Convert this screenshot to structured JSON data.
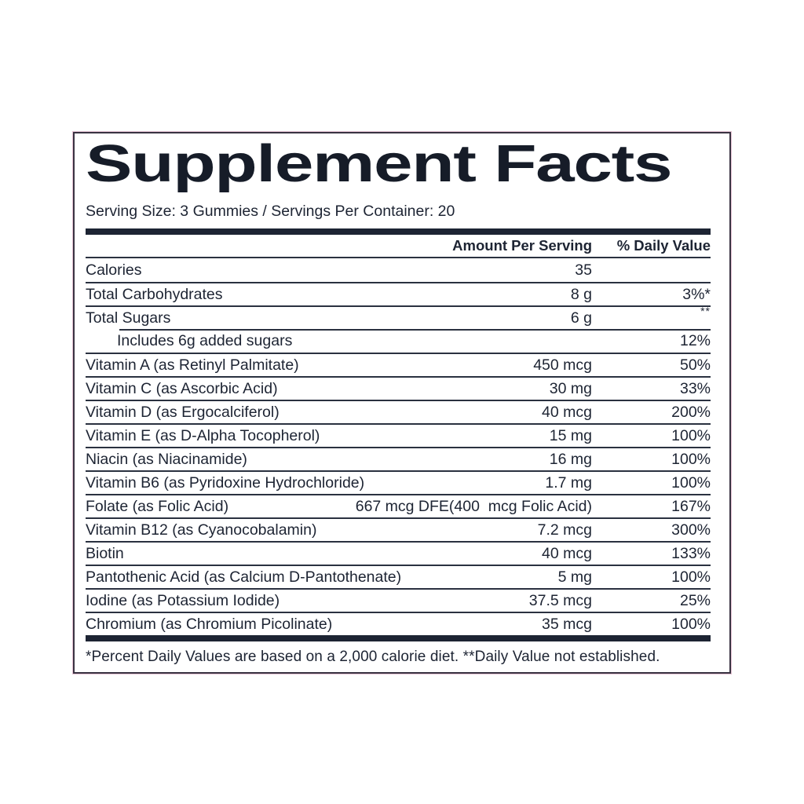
{
  "label": {
    "title": "Supplement Facts",
    "serving_info": "Serving Size: 3 Gummies / Servings Per Container: 20",
    "columns": {
      "amount": "Amount Per Serving",
      "daily_value": "% Daily Value"
    },
    "rows": [
      {
        "name": "Calories",
        "amount": "35",
        "dv": ""
      },
      {
        "name": "Total Carbohydrates",
        "amount": "8 g",
        "dv": "3%*"
      },
      {
        "name": "Total Sugars",
        "amount": "6 g",
        "dv": "**",
        "dv_sup": true
      },
      {
        "name": "Includes 6g added sugars",
        "amount": "",
        "dv": "12%",
        "indent": true,
        "indent_line": true
      },
      {
        "name": "Vitamin A (as Retinyl Palmitate)",
        "amount": "450 mcg",
        "dv": "50%"
      },
      {
        "name": "Vitamin C (as Ascorbic Acid)",
        "amount": "30 mg",
        "dv": "33%"
      },
      {
        "name": "Vitamin D (as Ergocalciferol)",
        "amount": "40 mcg",
        "dv": "200%"
      },
      {
        "name": "Vitamin E (as D-Alpha Tocopherol)",
        "amount": "15 mg",
        "dv": "100%"
      },
      {
        "name": "Niacin (as Niacinamide)",
        "amount": "16 mg",
        "dv": "100%"
      },
      {
        "name": "Vitamin B6 (as Pyridoxine Hydrochloride)",
        "amount": "1.7 mg",
        "dv": "100%"
      },
      {
        "name": "Folate (as Folic Acid)",
        "amount": "667 mcg DFE(400  mcg Folic Acid)",
        "dv": "167%"
      },
      {
        "name": "Vitamin B12 (as Cyanocobalamin)",
        "amount": "7.2 mcg",
        "dv": "300%"
      },
      {
        "name": "Biotin",
        "amount": "40 mcg",
        "dv": "133%"
      },
      {
        "name": "Pantothenic Acid (as Calcium D-Pantothenate)",
        "amount": "5 mg",
        "dv": "100%"
      },
      {
        "name": "Iodine (as Potassium Iodide)",
        "amount": "37.5 mcg",
        "dv": "25%"
      },
      {
        "name": "Chromium (as Chromium Picolinate)",
        "amount": "35 mcg",
        "dv": "100%"
      }
    ],
    "footnote": "*Percent Daily Values are based on a 2,000 calorie diet. **Daily Value not established.",
    "colors": {
      "text": "#1d2433",
      "rule": "#2a3140",
      "border": "#3a3342",
      "outer_tint": "#e3c2d2",
      "background": "#ffffff"
    }
  }
}
